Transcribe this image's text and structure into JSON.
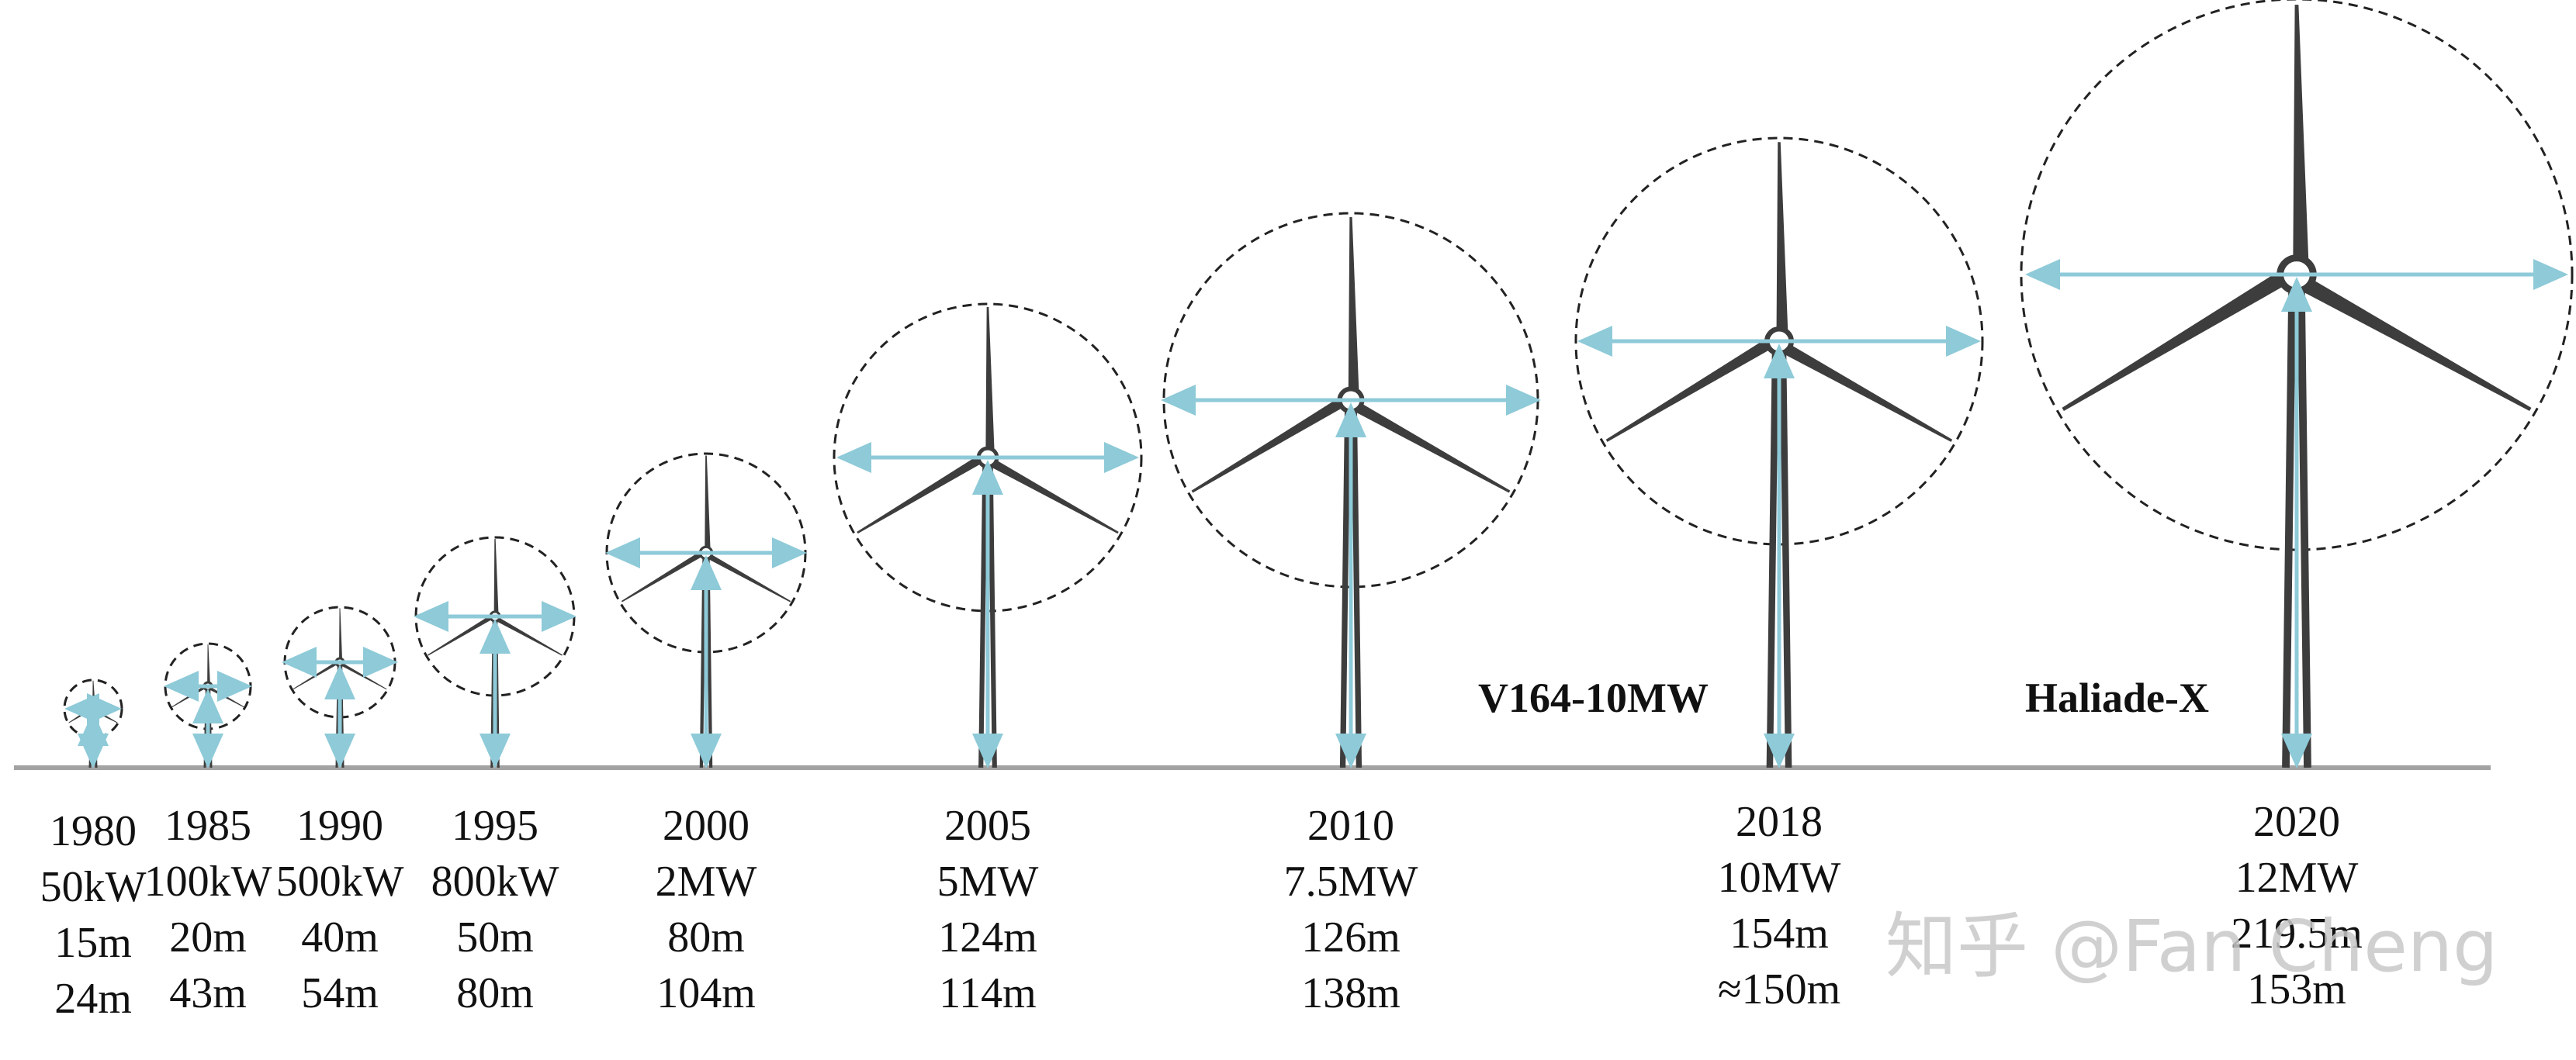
{
  "colors": {
    "turbine": "#3d3d3d",
    "arrow": "#8ecad8",
    "ground": "#a3a3a3",
    "circle": "#222222"
  },
  "turbines": [
    {
      "year": "1980",
      "power": "50kW",
      "diameter": "15m",
      "hub_height": "24m",
      "rotor_m": 15,
      "hub_m": 24
    },
    {
      "year": "1985",
      "power": "100kW",
      "diameter": "20m",
      "hub_height": "43m",
      "rotor_m": 20,
      "hub_m": 43
    },
    {
      "year": "1990",
      "power": "500kW",
      "diameter": "40m",
      "hub_height": "54m",
      "rotor_m": 40,
      "hub_m": 54
    },
    {
      "year": "1995",
      "power": "800kW",
      "diameter": "50m",
      "hub_height": "80m",
      "rotor_m": 50,
      "hub_m": 80
    },
    {
      "year": "2000",
      "power": "2MW",
      "diameter": "80m",
      "hub_height": "104m",
      "rotor_m": 80,
      "hub_m": 104
    },
    {
      "year": "2005",
      "power": "5MW",
      "diameter": "124m",
      "hub_height": "114m",
      "rotor_m": 124,
      "hub_m": 114
    },
    {
      "year": "2010",
      "power": "7.5MW",
      "diameter": "126m",
      "hub_height": "138m",
      "rotor_m": 126,
      "hub_m": 138
    },
    {
      "year": "2018",
      "power": "10MW",
      "diameter": "154m",
      "hub_height": "≈150m",
      "rotor_m": 154,
      "hub_m": 150,
      "model": "V164-10MW"
    },
    {
      "year": "2020",
      "power": "12MW",
      "diameter": "219.5m",
      "hub_height": "153m",
      "rotor_m": 219.5,
      "hub_m": 153,
      "model": "Haliade-X"
    }
  ],
  "watermark": "知乎 @Fan Cheng"
}
